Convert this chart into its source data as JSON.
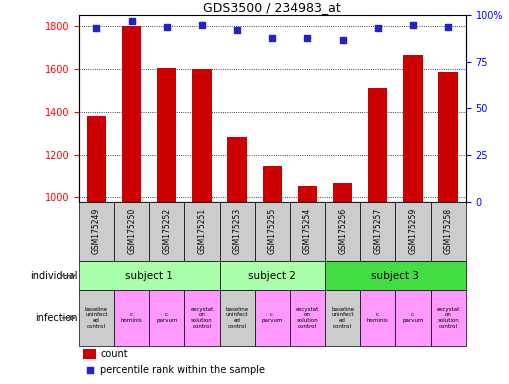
{
  "title": "GDS3500 / 234983_at",
  "samples": [
    "GSM175249",
    "GSM175250",
    "GSM175252",
    "GSM175251",
    "GSM175253",
    "GSM175255",
    "GSM175254",
    "GSM175256",
    "GSM175257",
    "GSM175259",
    "GSM175258"
  ],
  "counts": [
    1380,
    1800,
    1605,
    1600,
    1280,
    1145,
    1055,
    1065,
    1510,
    1665,
    1585
  ],
  "percentile_ranks": [
    93,
    97,
    94,
    95,
    92,
    88,
    88,
    87,
    93,
    95,
    94
  ],
  "ylim_left": [
    980,
    1850
  ],
  "ylim_right": [
    0,
    100
  ],
  "yticks_left": [
    1000,
    1200,
    1400,
    1600,
    1800
  ],
  "yticks_right": [
    0,
    25,
    50,
    75,
    100
  ],
  "bar_color": "#cc0000",
  "dot_color": "#2222cc",
  "subjects": [
    {
      "label": "subject 1",
      "start": 0,
      "end": 3,
      "color": "#aaffaa"
    },
    {
      "label": "subject 2",
      "start": 4,
      "end": 6,
      "color": "#aaffaa"
    },
    {
      "label": "subject 3",
      "start": 7,
      "end": 10,
      "color": "#44dd44"
    }
  ],
  "infection_labels": [
    "baseline\nuninfect\ned\ncontrol",
    "c.\nhominis",
    "c.\nparvum",
    "excystat\non\nsolution\ncontrol",
    "baseline\nuninfect\ned\ncontrol",
    "c.\nparvum",
    "excystat\non\nsolution\ncontrol",
    "baseline\nuninfect\ned\ncontrol",
    "c.\nhominis",
    "c.\nparvum",
    "excystat\non\nsolution\ncontrol"
  ],
  "infection_colors": [
    "#cccccc",
    "#ff99ff",
    "#ff99ff",
    "#ff99ff",
    "#cccccc",
    "#ff99ff",
    "#ff99ff",
    "#cccccc",
    "#ff99ff",
    "#ff99ff",
    "#ff99ff"
  ],
  "sample_bg_color": "#cccccc"
}
